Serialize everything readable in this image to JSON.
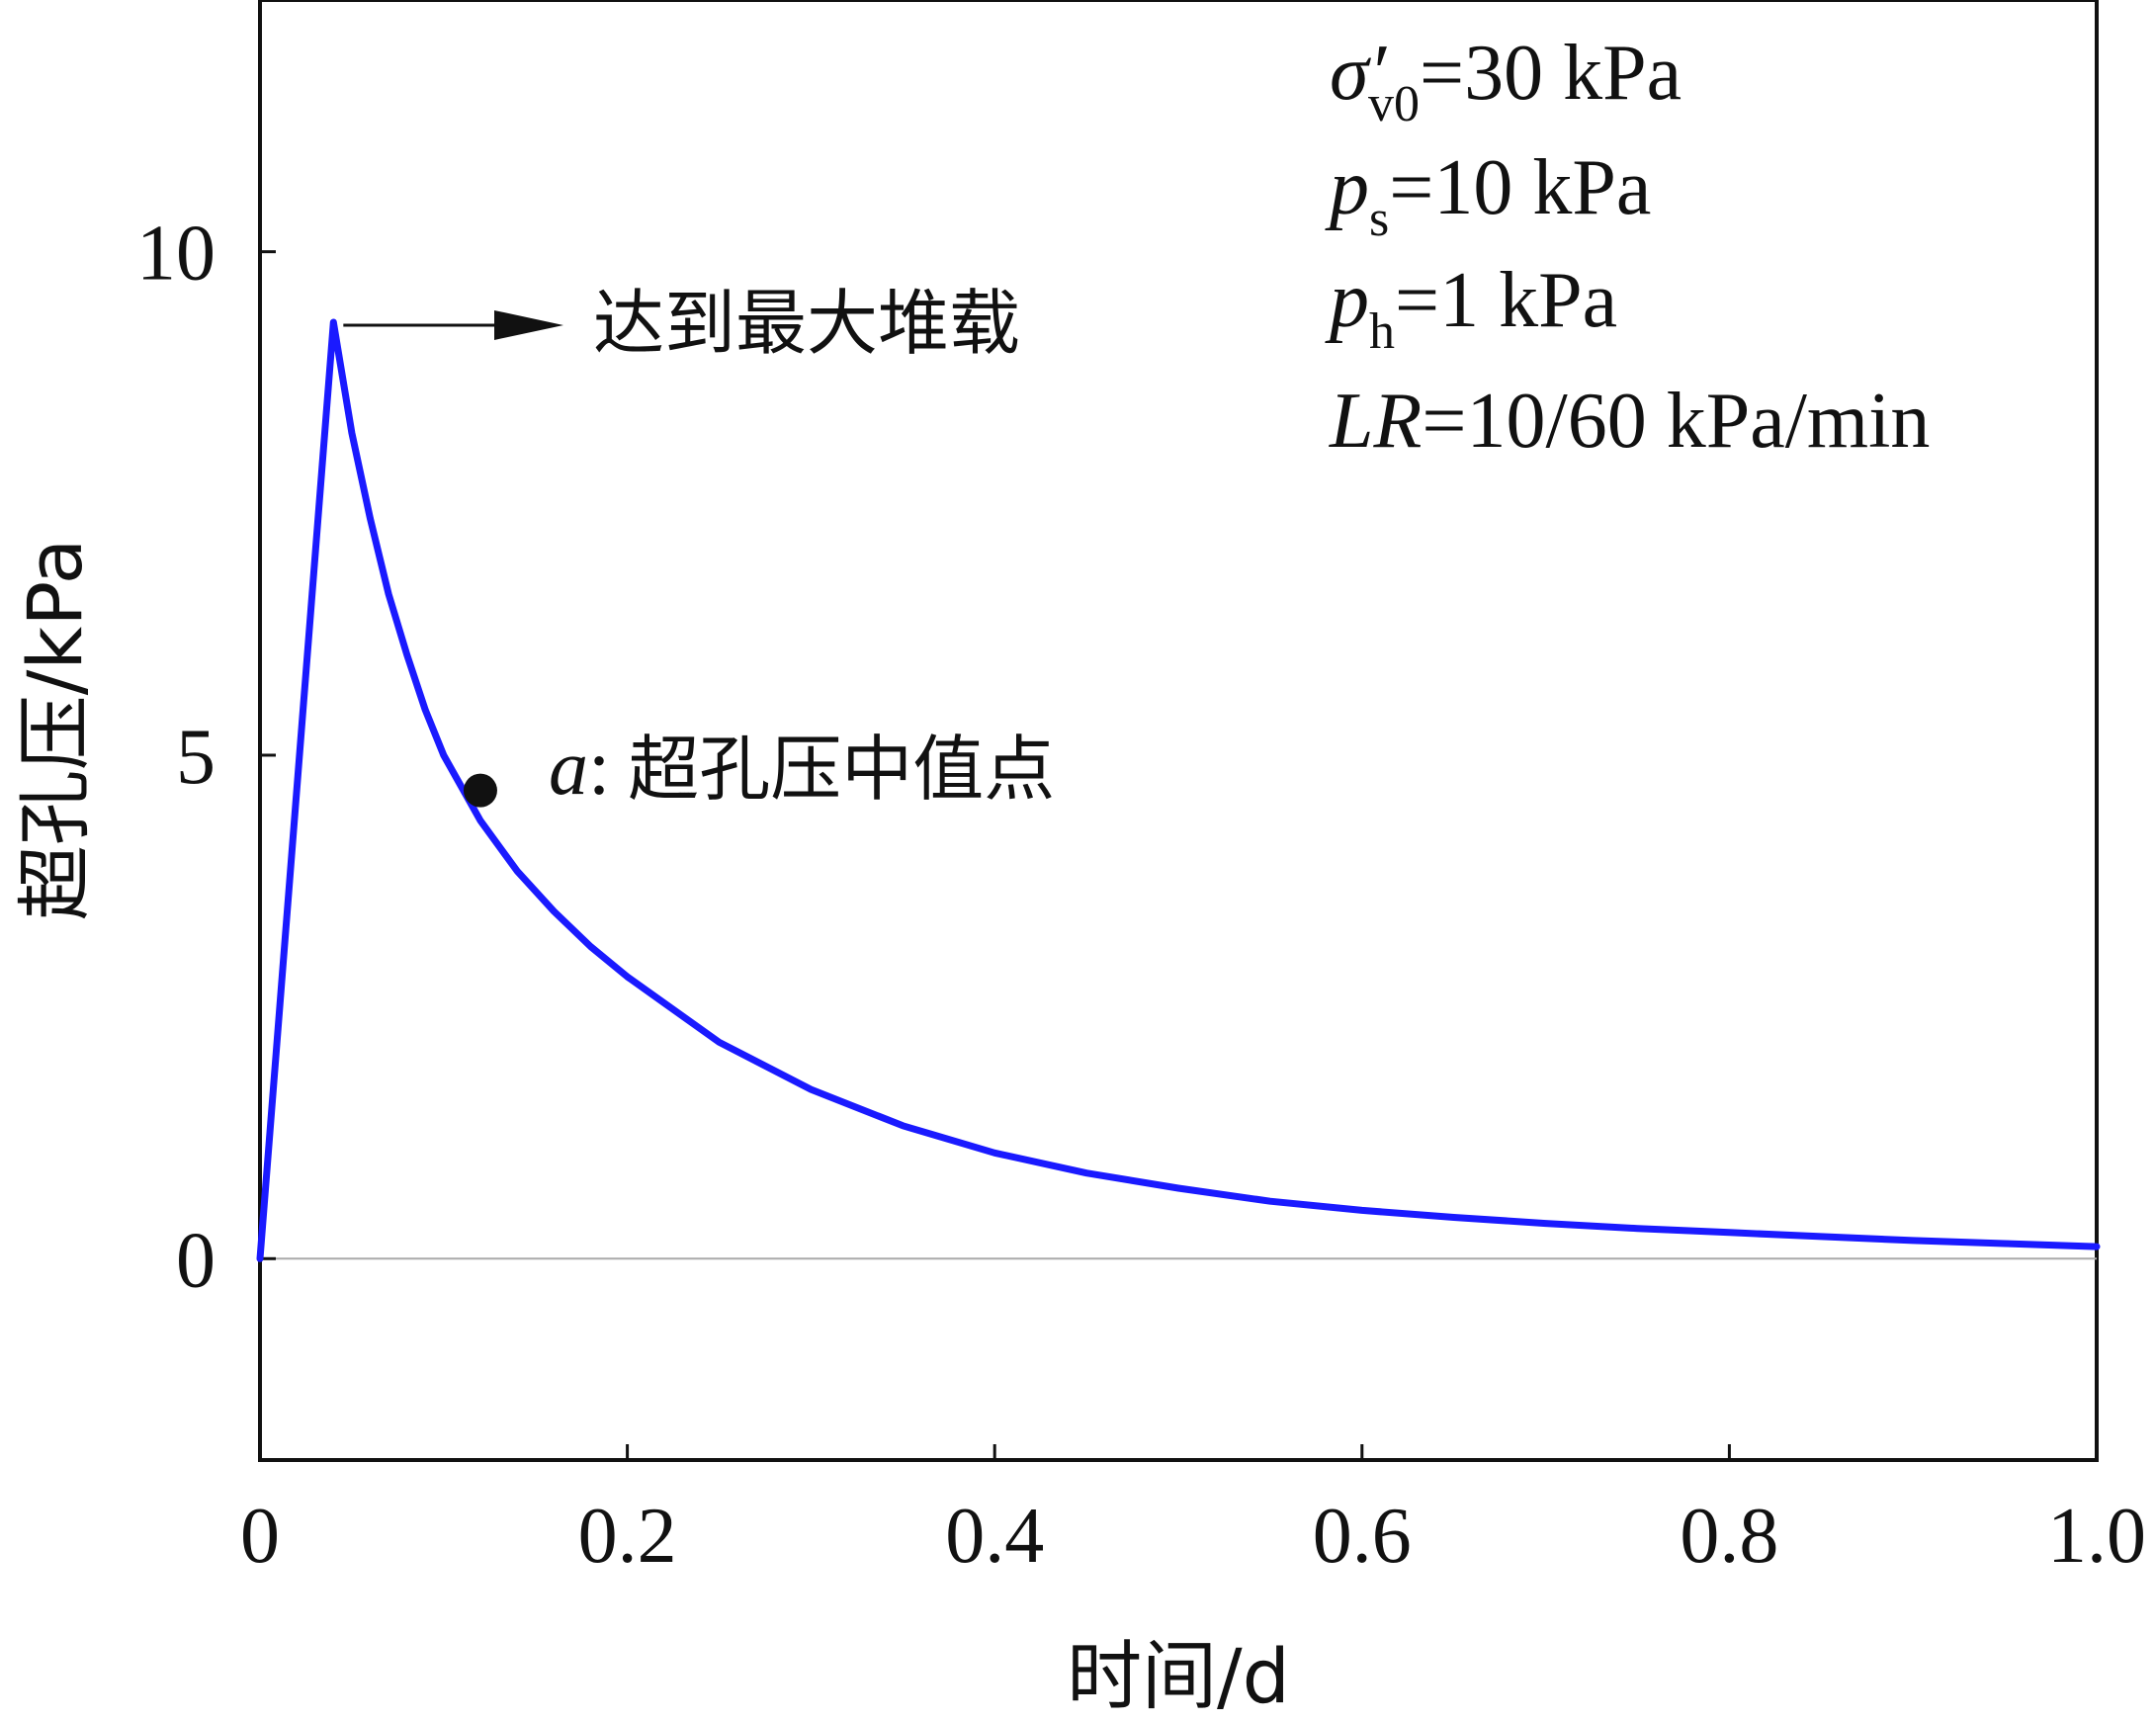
{
  "chart_data": {
    "type": "line",
    "xlabel": "时间/d",
    "ylabel": "超孔压/kPa",
    "xlim": [
      0,
      1.0
    ],
    "ylim": [
      -2.0,
      12.5
    ],
    "xticks": [
      0,
      0.2,
      0.4,
      0.6,
      0.8,
      1.0
    ],
    "xtick_labels": [
      "0",
      "0.2",
      "0.4",
      "0.6",
      "0.8",
      "1.0"
    ],
    "yticks": [
      0,
      5,
      10
    ],
    "ytick_labels": [
      "0",
      "5",
      "10"
    ],
    "grid": false,
    "reference_line_y": 0,
    "series": [
      {
        "color": "#1a1aff",
        "x": [
          0,
          0.04,
          0.05,
          0.06,
          0.07,
          0.08,
          0.09,
          0.1,
          0.12,
          0.14,
          0.16,
          0.18,
          0.2,
          0.25,
          0.3,
          0.35,
          0.4,
          0.45,
          0.5,
          0.55,
          0.6,
          0.65,
          0.7,
          0.75,
          0.8,
          0.85,
          0.9,
          0.95,
          1.0
        ],
        "y": [
          0,
          9.3,
          8.2,
          7.35,
          6.6,
          6.0,
          5.45,
          5.0,
          4.35,
          3.85,
          3.45,
          3.1,
          2.8,
          2.15,
          1.68,
          1.32,
          1.05,
          0.85,
          0.7,
          0.57,
          0.48,
          0.41,
          0.35,
          0.3,
          0.26,
          0.22,
          0.18,
          0.15,
          0.12
        ]
      }
    ],
    "annotations": {
      "peak": {
        "label": "达到最大堆载",
        "x": 0.04,
        "y": 9.3
      },
      "point_a": {
        "symbol": "a",
        "colon": ":",
        "label": "超孔压中值点",
        "x": 0.12,
        "y": 4.65
      }
    },
    "parameters": {
      "sigma": {
        "symbol": "σ",
        "prime": "′",
        "subscript": "v0",
        "value": "=30 kPa"
      },
      "ps": {
        "symbol": "p",
        "subscript": "s",
        "value": "=10 kPa"
      },
      "ph": {
        "symbol": "p",
        "subscript": "h",
        "value": "=1 kPa"
      },
      "lr": {
        "symbol": "LR",
        "value": "=10/60 kPa/min"
      }
    }
  }
}
